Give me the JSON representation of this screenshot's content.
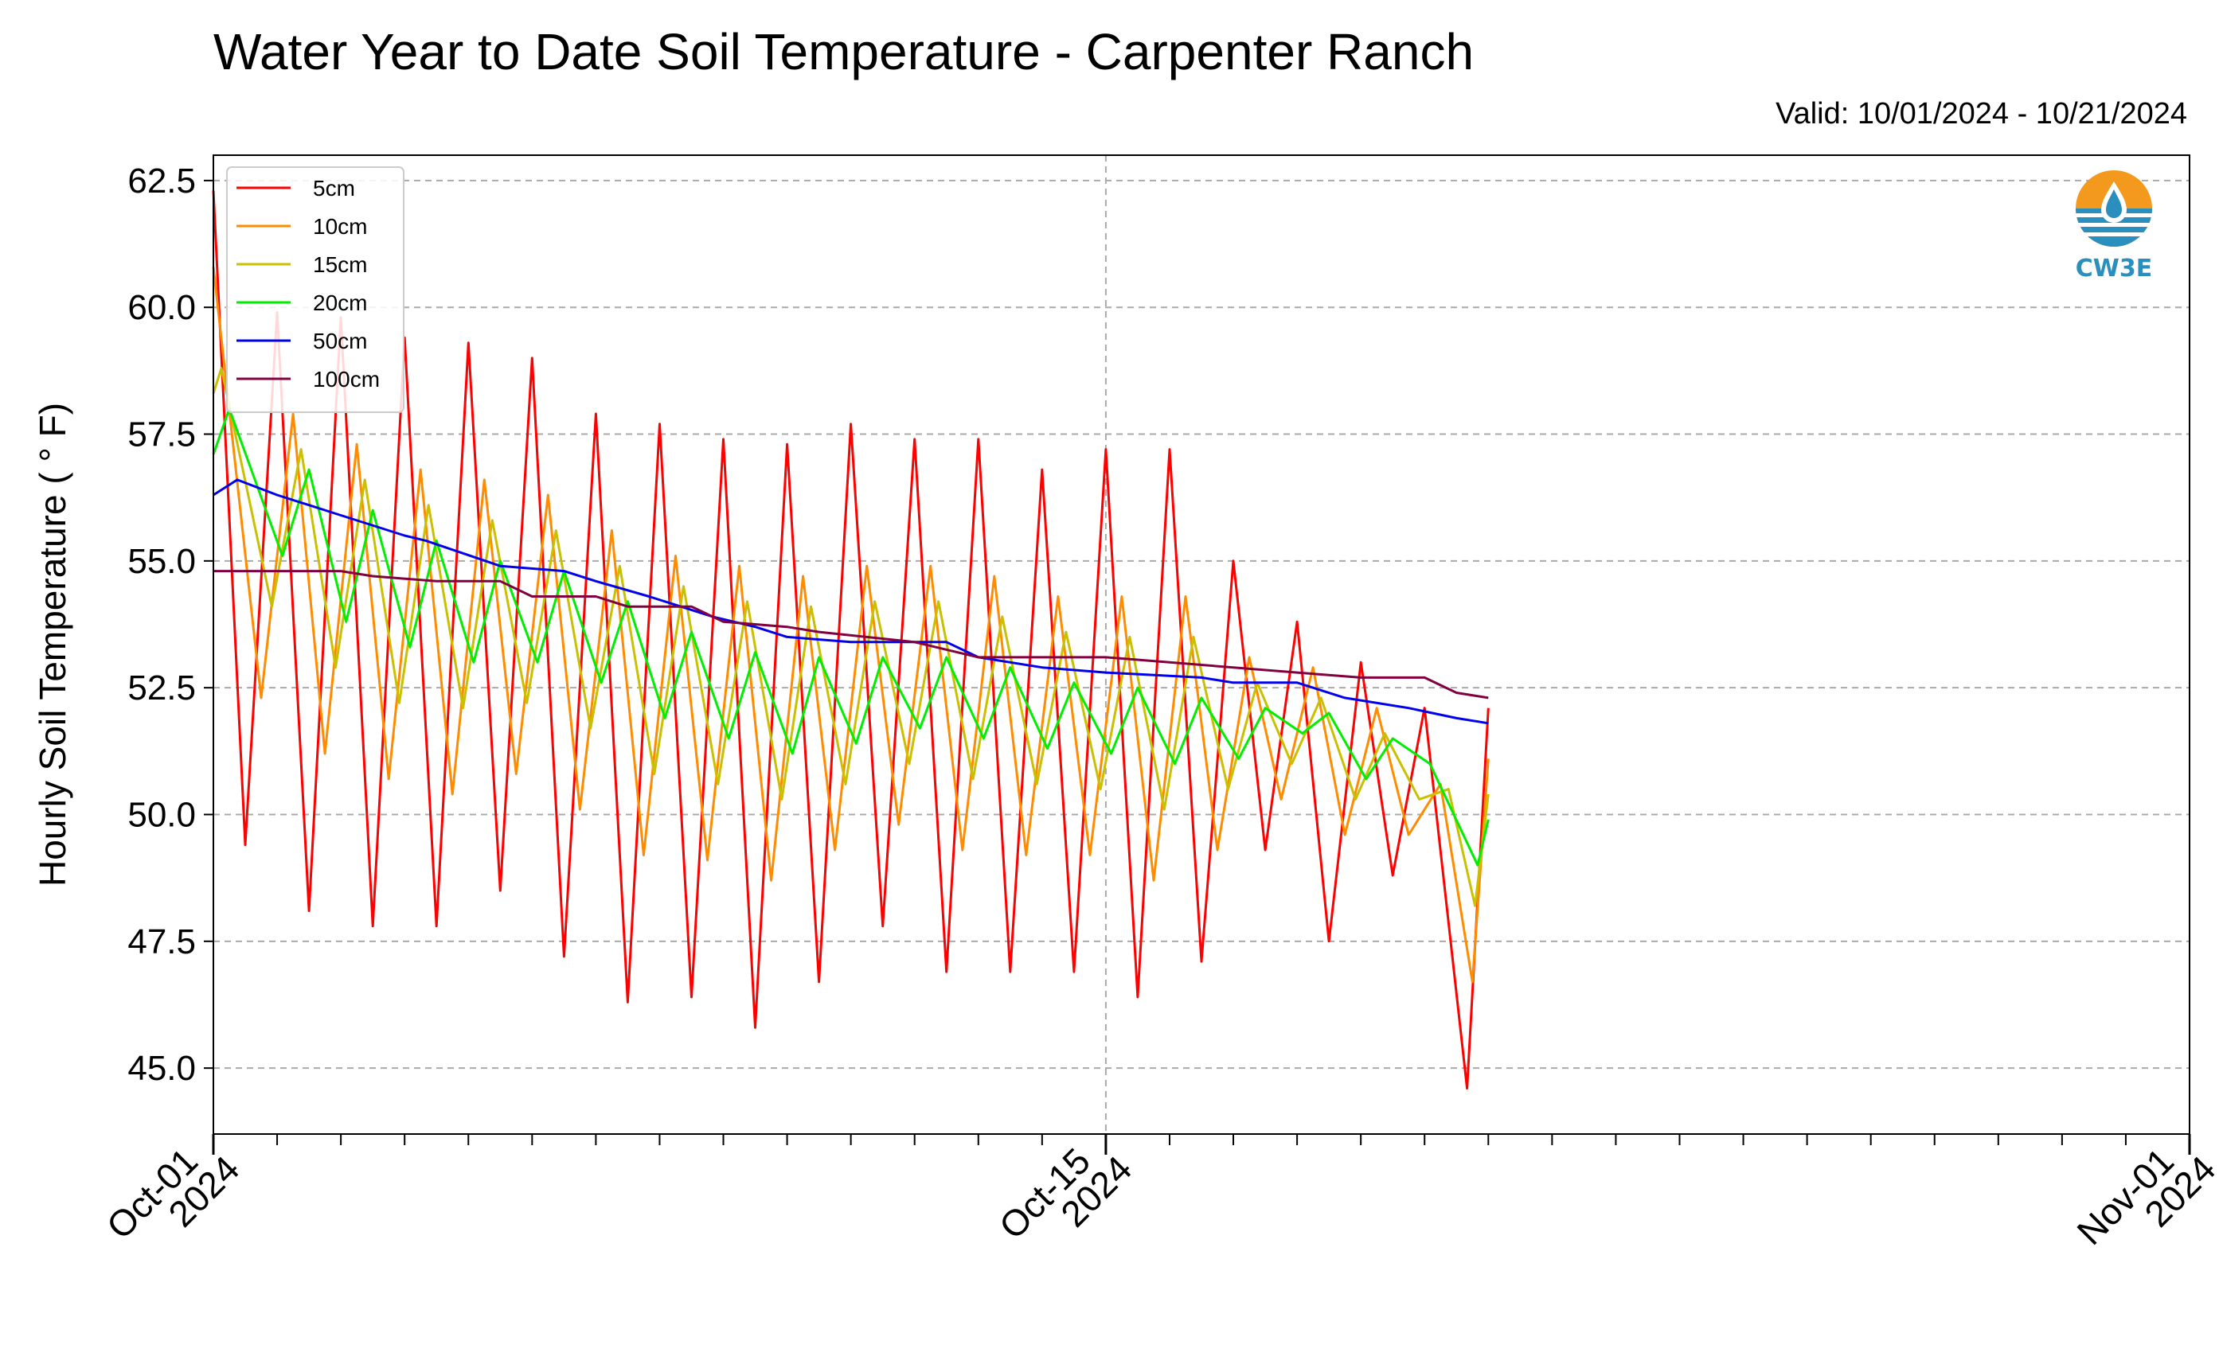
{
  "header": {
    "title": "Water Year to Date Soil Temperature - Carpenter Ranch",
    "valid": "Valid: 10/01/2024 - 10/21/2024"
  },
  "logo": {
    "text": "CW3E",
    "icon": "cw3e-water-drop-logo"
  },
  "colors": {
    "5cm": "#ff0000",
    "10cm": "#ff8c00",
    "15cm": "#c8c000",
    "20cm": "#00ee00",
    "50cm": "#0000ee",
    "100cm": "#800040"
  },
  "chart_data": {
    "type": "line",
    "title": "Water Year to Date Soil Temperature - Carpenter Ranch",
    "ylabel": "Hourly Soil Temperature ( ° F)",
    "xlabel": "",
    "xlim": [
      "2024-10-01",
      "2024-11-01"
    ],
    "ylim": [
      43.7,
      63.0
    ],
    "x_ticks": [
      {
        "date": "2024-10-01",
        "label": [
          "Oct-01",
          "2024"
        ]
      },
      {
        "date": "2024-10-15",
        "label": [
          "Oct-15",
          "2024"
        ]
      },
      {
        "date": "2024-11-01",
        "label": [
          "Nov-01",
          "2024"
        ]
      }
    ],
    "y_ticks": [
      "45.0",
      "47.5",
      "50.0",
      "52.5",
      "55.0",
      "57.5",
      "60.0",
      "62.5"
    ],
    "grid": true,
    "legend": "top-left",
    "series": [
      {
        "name": "5cm",
        "points": [
          [
            "2024-10-01T00:00",
            62.3
          ],
          [
            "2024-10-01T12:00",
            49.4
          ],
          [
            "2024-10-02T00:00",
            59.9
          ],
          [
            "2024-10-02T12:00",
            48.1
          ],
          [
            "2024-10-03T00:00",
            59.8
          ],
          [
            "2024-10-03T12:00",
            47.8
          ],
          [
            "2024-10-04T00:00",
            59.4
          ],
          [
            "2024-10-04T12:00",
            47.8
          ],
          [
            "2024-10-05T00:00",
            59.3
          ],
          [
            "2024-10-05T12:00",
            48.5
          ],
          [
            "2024-10-06T00:00",
            59.0
          ],
          [
            "2024-10-06T12:00",
            47.2
          ],
          [
            "2024-10-07T00:00",
            57.9
          ],
          [
            "2024-10-07T12:00",
            46.3
          ],
          [
            "2024-10-08T00:00",
            57.7
          ],
          [
            "2024-10-08T12:00",
            46.4
          ],
          [
            "2024-10-09T00:00",
            57.4
          ],
          [
            "2024-10-09T12:00",
            45.8
          ],
          [
            "2024-10-10T00:00",
            57.3
          ],
          [
            "2024-10-10T12:00",
            46.7
          ],
          [
            "2024-10-11T00:00",
            57.7
          ],
          [
            "2024-10-11T12:00",
            47.8
          ],
          [
            "2024-10-12T00:00",
            57.4
          ],
          [
            "2024-10-12T12:00",
            46.9
          ],
          [
            "2024-10-13T00:00",
            57.4
          ],
          [
            "2024-10-13T12:00",
            46.9
          ],
          [
            "2024-10-14T00:00",
            56.8
          ],
          [
            "2024-10-14T12:00",
            46.9
          ],
          [
            "2024-10-15T00:00",
            57.2
          ],
          [
            "2024-10-15T12:00",
            46.4
          ],
          [
            "2024-10-16T00:00",
            57.2
          ],
          [
            "2024-10-16T12:00",
            47.1
          ],
          [
            "2024-10-17T00:00",
            55.0
          ],
          [
            "2024-10-17T12:00",
            49.3
          ],
          [
            "2024-10-18T00:00",
            53.8
          ],
          [
            "2024-10-18T12:00",
            47.5
          ],
          [
            "2024-10-19T00:00",
            53.0
          ],
          [
            "2024-10-19T12:00",
            48.8
          ],
          [
            "2024-10-20T00:00",
            52.1
          ],
          [
            "2024-10-20T16:00",
            44.6
          ],
          [
            "2024-10-21T00:00",
            52.1
          ]
        ]
      },
      {
        "name": "10cm",
        "points": [
          [
            "2024-10-01T00:00",
            60.8
          ],
          [
            "2024-10-01T18:00",
            52.3
          ],
          [
            "2024-10-02T06:00",
            57.9
          ],
          [
            "2024-10-02T18:00",
            51.2
          ],
          [
            "2024-10-03T06:00",
            57.3
          ],
          [
            "2024-10-03T18:00",
            50.7
          ],
          [
            "2024-10-04T06:00",
            56.8
          ],
          [
            "2024-10-04T18:00",
            50.4
          ],
          [
            "2024-10-05T06:00",
            56.6
          ],
          [
            "2024-10-05T18:00",
            50.8
          ],
          [
            "2024-10-06T06:00",
            56.3
          ],
          [
            "2024-10-06T18:00",
            50.1
          ],
          [
            "2024-10-07T06:00",
            55.6
          ],
          [
            "2024-10-07T18:00",
            49.2
          ],
          [
            "2024-10-08T06:00",
            55.1
          ],
          [
            "2024-10-08T18:00",
            49.1
          ],
          [
            "2024-10-09T06:00",
            54.9
          ],
          [
            "2024-10-09T18:00",
            48.7
          ],
          [
            "2024-10-10T06:00",
            54.7
          ],
          [
            "2024-10-10T18:00",
            49.3
          ],
          [
            "2024-10-11T06:00",
            54.9
          ],
          [
            "2024-10-11T18:00",
            49.8
          ],
          [
            "2024-10-12T06:00",
            54.9
          ],
          [
            "2024-10-12T18:00",
            49.3
          ],
          [
            "2024-10-13T06:00",
            54.7
          ],
          [
            "2024-10-13T18:00",
            49.2
          ],
          [
            "2024-10-14T06:00",
            54.3
          ],
          [
            "2024-10-14T18:00",
            49.2
          ],
          [
            "2024-10-15T06:00",
            54.3
          ],
          [
            "2024-10-15T18:00",
            48.7
          ],
          [
            "2024-10-16T06:00",
            54.3
          ],
          [
            "2024-10-16T18:00",
            49.3
          ],
          [
            "2024-10-17T06:00",
            53.1
          ],
          [
            "2024-10-17T18:00",
            50.3
          ],
          [
            "2024-10-18T06:00",
            52.9
          ],
          [
            "2024-10-18T18:00",
            49.6
          ],
          [
            "2024-10-19T06:00",
            52.1
          ],
          [
            "2024-10-19T18:00",
            49.6
          ],
          [
            "2024-10-20T06:00",
            50.6
          ],
          [
            "2024-10-20T18:00",
            46.7
          ],
          [
            "2024-10-21T00:00",
            51.1
          ]
        ]
      },
      {
        "name": "15cm",
        "points": [
          [
            "2024-10-01T00:00",
            58.3
          ],
          [
            "2024-10-01T03:00",
            58.8
          ],
          [
            "2024-10-01T22:00",
            54.1
          ],
          [
            "2024-10-02T09:00",
            57.2
          ],
          [
            "2024-10-02T22:00",
            52.9
          ],
          [
            "2024-10-03T09:00",
            56.6
          ],
          [
            "2024-10-03T22:00",
            52.2
          ],
          [
            "2024-10-04T09:00",
            56.1
          ],
          [
            "2024-10-04T22:00",
            52.1
          ],
          [
            "2024-10-05T09:00",
            55.8
          ],
          [
            "2024-10-05T22:00",
            52.2
          ],
          [
            "2024-10-06T09:00",
            55.6
          ],
          [
            "2024-10-06T22:00",
            51.7
          ],
          [
            "2024-10-07T09:00",
            54.9
          ],
          [
            "2024-10-07T22:00",
            50.8
          ],
          [
            "2024-10-08T09:00",
            54.5
          ],
          [
            "2024-10-08T22:00",
            50.6
          ],
          [
            "2024-10-09T09:00",
            54.2
          ],
          [
            "2024-10-09T22:00",
            50.3
          ],
          [
            "2024-10-10T09:00",
            54.1
          ],
          [
            "2024-10-10T22:00",
            50.6
          ],
          [
            "2024-10-11T09:00",
            54.2
          ],
          [
            "2024-10-11T22:00",
            51.0
          ],
          [
            "2024-10-12T09:00",
            54.2
          ],
          [
            "2024-10-12T22:00",
            50.7
          ],
          [
            "2024-10-13T09:00",
            53.9
          ],
          [
            "2024-10-13T22:00",
            50.6
          ],
          [
            "2024-10-14T09:00",
            53.6
          ],
          [
            "2024-10-14T22:00",
            50.5
          ],
          [
            "2024-10-15T09:00",
            53.5
          ],
          [
            "2024-10-15T22:00",
            50.1
          ],
          [
            "2024-10-16T09:00",
            53.5
          ],
          [
            "2024-10-16T22:00",
            50.5
          ],
          [
            "2024-10-17T09:00",
            52.6
          ],
          [
            "2024-10-17T22:00",
            51.0
          ],
          [
            "2024-10-18T09:00",
            52.3
          ],
          [
            "2024-10-18T22:00",
            50.3
          ],
          [
            "2024-10-19T09:00",
            51.6
          ],
          [
            "2024-10-19T22:00",
            50.3
          ],
          [
            "2024-10-20T09:00",
            50.5
          ],
          [
            "2024-10-20T19:00",
            48.2
          ],
          [
            "2024-10-21T00:00",
            50.4
          ]
        ]
      },
      {
        "name": "20cm",
        "points": [
          [
            "2024-10-01T00:00",
            57.1
          ],
          [
            "2024-10-01T06:00",
            58.0
          ],
          [
            "2024-10-02T02:00",
            55.1
          ],
          [
            "2024-10-02T12:00",
            56.8
          ],
          [
            "2024-10-03T02:00",
            53.8
          ],
          [
            "2024-10-03T12:00",
            56.0
          ],
          [
            "2024-10-04T02:00",
            53.3
          ],
          [
            "2024-10-04T12:00",
            55.4
          ],
          [
            "2024-10-05T02:00",
            53.0
          ],
          [
            "2024-10-05T12:00",
            55.0
          ],
          [
            "2024-10-06T02:00",
            53.0
          ],
          [
            "2024-10-06T12:00",
            54.8
          ],
          [
            "2024-10-07T02:00",
            52.6
          ],
          [
            "2024-10-07T12:00",
            54.2
          ],
          [
            "2024-10-08T02:00",
            51.9
          ],
          [
            "2024-10-08T12:00",
            53.6
          ],
          [
            "2024-10-09T02:00",
            51.5
          ],
          [
            "2024-10-09T12:00",
            53.2
          ],
          [
            "2024-10-10T02:00",
            51.2
          ],
          [
            "2024-10-10T12:00",
            53.1
          ],
          [
            "2024-10-11T02:00",
            51.4
          ],
          [
            "2024-10-11T12:00",
            53.1
          ],
          [
            "2024-10-12T02:00",
            51.7
          ],
          [
            "2024-10-12T12:00",
            53.1
          ],
          [
            "2024-10-13T02:00",
            51.5
          ],
          [
            "2024-10-13T12:00",
            52.9
          ],
          [
            "2024-10-14T02:00",
            51.3
          ],
          [
            "2024-10-14T12:00",
            52.6
          ],
          [
            "2024-10-15T02:00",
            51.2
          ],
          [
            "2024-10-15T12:00",
            52.5
          ],
          [
            "2024-10-16T02:00",
            51.0
          ],
          [
            "2024-10-16T12:00",
            52.3
          ],
          [
            "2024-10-17T02:00",
            51.1
          ],
          [
            "2024-10-17T12:00",
            52.1
          ],
          [
            "2024-10-18T02:00",
            51.6
          ],
          [
            "2024-10-18T12:00",
            52.0
          ],
          [
            "2024-10-19T02:00",
            50.7
          ],
          [
            "2024-10-19T12:00",
            51.5
          ],
          [
            "2024-10-20T02:00",
            51.0
          ],
          [
            "2024-10-20T20:00",
            49.0
          ],
          [
            "2024-10-21T00:00",
            49.9
          ]
        ]
      },
      {
        "name": "50cm",
        "points": [
          [
            "2024-10-01T00:00",
            56.3
          ],
          [
            "2024-10-01T09:00",
            56.6
          ],
          [
            "2024-10-02T00:00",
            56.3
          ],
          [
            "2024-10-02T12:00",
            56.1
          ],
          [
            "2024-10-03T00:00",
            55.9
          ],
          [
            "2024-10-04T00:00",
            55.5
          ],
          [
            "2024-10-04T08:00",
            55.4
          ],
          [
            "2024-10-05T12:00",
            54.9
          ],
          [
            "2024-10-06T12:00",
            54.8
          ],
          [
            "2024-10-07T00:00",
            54.6
          ],
          [
            "2024-10-07T20:00",
            54.3
          ],
          [
            "2024-10-08T20:00",
            53.9
          ],
          [
            "2024-10-09T12:00",
            53.7
          ],
          [
            "2024-10-10T00:00",
            53.5
          ],
          [
            "2024-10-11T00:00",
            53.4
          ],
          [
            "2024-10-12T12:00",
            53.4
          ],
          [
            "2024-10-13T00:00",
            53.1
          ],
          [
            "2024-10-14T00:00",
            52.9
          ],
          [
            "2024-10-15T00:00",
            52.8
          ],
          [
            "2024-10-16T12:00",
            52.7
          ],
          [
            "2024-10-17T00:00",
            52.6
          ],
          [
            "2024-10-18T00:00",
            52.6
          ],
          [
            "2024-10-18T18:00",
            52.3
          ],
          [
            "2024-10-19T18:00",
            52.1
          ],
          [
            "2024-10-20T12:00",
            51.9
          ],
          [
            "2024-10-21T00:00",
            51.8
          ]
        ]
      },
      {
        "name": "100cm",
        "points": [
          [
            "2024-10-01T00:00",
            54.8
          ],
          [
            "2024-10-02T00:00",
            54.8
          ],
          [
            "2024-10-03T00:00",
            54.8
          ],
          [
            "2024-10-03T12:00",
            54.7
          ],
          [
            "2024-10-04T12:00",
            54.6
          ],
          [
            "2024-10-05T12:00",
            54.6
          ],
          [
            "2024-10-06T00:00",
            54.3
          ],
          [
            "2024-10-07T00:00",
            54.3
          ],
          [
            "2024-10-07T12:00",
            54.1
          ],
          [
            "2024-10-08T12:00",
            54.1
          ],
          [
            "2024-10-09T00:00",
            53.8
          ],
          [
            "2024-10-10T00:00",
            53.7
          ],
          [
            "2024-10-10T12:00",
            53.6
          ],
          [
            "2024-10-12T00:00",
            53.4
          ],
          [
            "2024-10-13T00:00",
            53.1
          ],
          [
            "2024-10-14T00:00",
            53.1
          ],
          [
            "2024-10-15T00:00",
            53.1
          ],
          [
            "2024-10-16T00:00",
            53.0
          ],
          [
            "2024-10-17T00:00",
            52.9
          ],
          [
            "2024-10-18T00:00",
            52.8
          ],
          [
            "2024-10-19T00:00",
            52.7
          ],
          [
            "2024-10-19T18:00",
            52.7
          ],
          [
            "2024-10-20T00:00",
            52.7
          ],
          [
            "2024-10-20T12:00",
            52.4
          ],
          [
            "2024-10-21T00:00",
            52.3
          ]
        ]
      }
    ]
  }
}
